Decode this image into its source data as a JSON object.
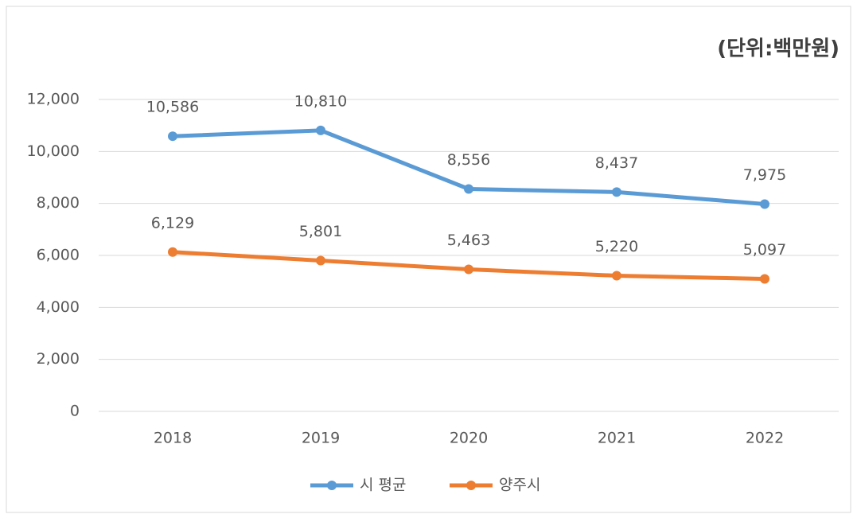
{
  "chart_data": {
    "type": "line",
    "annotation": "(단위:백만원)",
    "categories": [
      "2018",
      "2019",
      "2020",
      "2021",
      "2022"
    ],
    "series": [
      {
        "name": "시 평균",
        "color": "#5b9bd5",
        "values": [
          10586,
          10810,
          8556,
          8437,
          7975
        ],
        "value_labels": [
          "10,586",
          "10,810",
          "8,556",
          "8,437",
          "7,975"
        ]
      },
      {
        "name": "양주시",
        "color": "#ed7d31",
        "values": [
          6129,
          5801,
          5463,
          5220,
          5097
        ],
        "value_labels": [
          "6,129",
          "5,801",
          "5,463",
          "5,220",
          "5,097"
        ]
      }
    ],
    "ylim": [
      0,
      12000
    ],
    "yticks": [
      0,
      {
        "value": 2000,
        "label": "2,000"
      },
      {
        "value": 4000,
        "label": "4,000"
      },
      {
        "value": 6000,
        "label": "6,000"
      },
      {
        "value": 8000,
        "label": "8,000"
      },
      {
        "value": 10000,
        "label": "10,000"
      },
      {
        "value": 12000,
        "label": "12,000"
      }
    ],
    "grid": true,
    "legend": "bottom"
  }
}
